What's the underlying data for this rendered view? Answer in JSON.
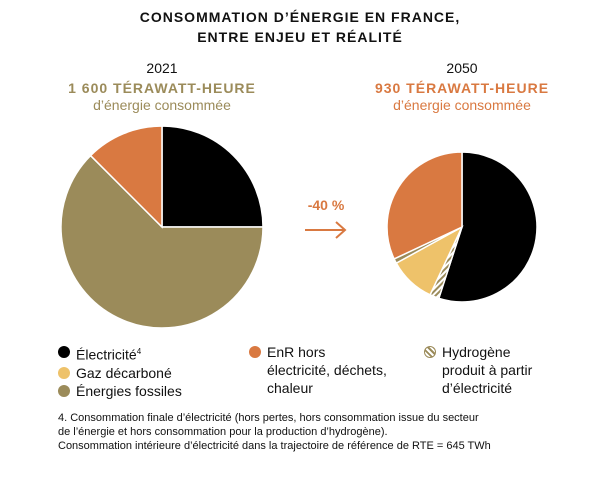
{
  "title_line1": "CONSOMMATION D’ÉNERGIE EN FRANCE,",
  "title_line2": "ENTRE ENJEU ET RÉALITÉ",
  "left": {
    "year": "2021",
    "amount": "1 600 TÉRAWATT-HEURE",
    "subtitle": "d’énergie consommée"
  },
  "right": {
    "year": "2050",
    "amount": "930 TÉRAWATT-HEURE",
    "subtitle": "d’énergie consommée"
  },
  "change": "-40 %",
  "legend": {
    "electricite": "Électricité",
    "electricite_sup": "4",
    "gaz": "Gaz décarboné",
    "fossiles": "Énergies fossiles",
    "enr": "EnR hors électricité, déchets, chaleur",
    "hydrogene": "Hydrogène produit à partir d’électricité"
  },
  "footnote_1": "4. Consommation finale d’électricité (hors pertes, hors consommation issue du secteur",
  "footnote_2": "de l’énergie et hors consommation pour la production d’hydrogène).",
  "footnote_3": "Consommation intérieure d’électricité dans la trajectoire de référence de RTE = 645 TWh",
  "colors": {
    "electricite": "#000000",
    "enr": "#d97941",
    "gaz": "#eec26a",
    "fossiles": "#9b8b5a",
    "hydrogene": "#9b8b5a",
    "left_accent": "#9b8b5a",
    "right_accent": "#d97941"
  },
  "chart_data": [
    {
      "type": "pie",
      "title": "2021",
      "slices": [
        {
          "name": "Électricité",
          "value": 25
        },
        {
          "name": "Énergies fossiles",
          "value": 62.5
        },
        {
          "name": "EnR hors électricité, déchets, chaleur",
          "value": 12.5
        }
      ]
    },
    {
      "type": "pie",
      "title": "2050",
      "slices": [
        {
          "name": "Électricité",
          "value": 55
        },
        {
          "name": "Hydrogène produit à partir d’électricité",
          "value": 2
        },
        {
          "name": "Gaz décarboné",
          "value": 10
        },
        {
          "name": "Énergies fossiles",
          "value": 1
        },
        {
          "name": "EnR hors électricité, déchets, chaleur",
          "value": 32
        }
      ]
    }
  ]
}
